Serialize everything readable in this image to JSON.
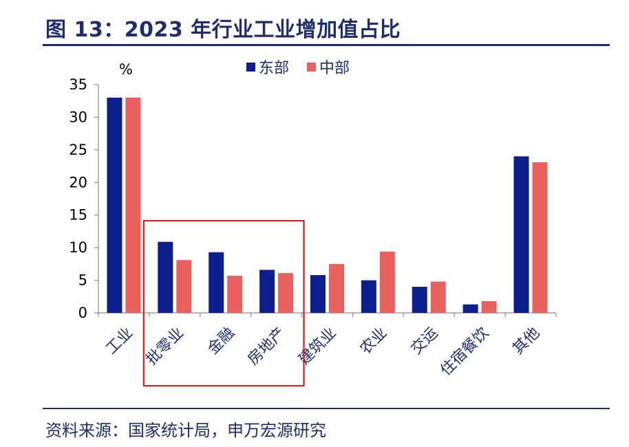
{
  "header": {
    "title": "图 13：2023 年行业工业增加值占比"
  },
  "footer": {
    "source": "资料来源：国家统计局，申万宏源研究"
  },
  "colors": {
    "east": "#0d1f8c",
    "central": "#e8615f",
    "highlight_box": "#cc2222",
    "brand": "#1f2d6b"
  },
  "chart_data": {
    "type": "bar",
    "unit_label": "%",
    "categories": [
      "工业",
      "批零业",
      "金融",
      "房地产",
      "建筑业",
      "农业",
      "交运",
      "住宿餐饮",
      "其他"
    ],
    "series": [
      {
        "name": "东部",
        "values": [
          33,
          10.9,
          9.3,
          6.6,
          5.8,
          5.0,
          4.0,
          1.3,
          24.0
        ]
      },
      {
        "name": "中部",
        "values": [
          33,
          8.1,
          5.7,
          6.1,
          7.5,
          9.4,
          4.8,
          1.8,
          23.1
        ]
      }
    ],
    "ylim": [
      0,
      35
    ],
    "yticks": [
      0,
      5,
      10,
      15,
      20,
      25,
      30,
      35
    ],
    "legend_position": "top-center",
    "grid": false,
    "highlighted_categories": [
      "批零业",
      "金融",
      "房地产"
    ]
  }
}
